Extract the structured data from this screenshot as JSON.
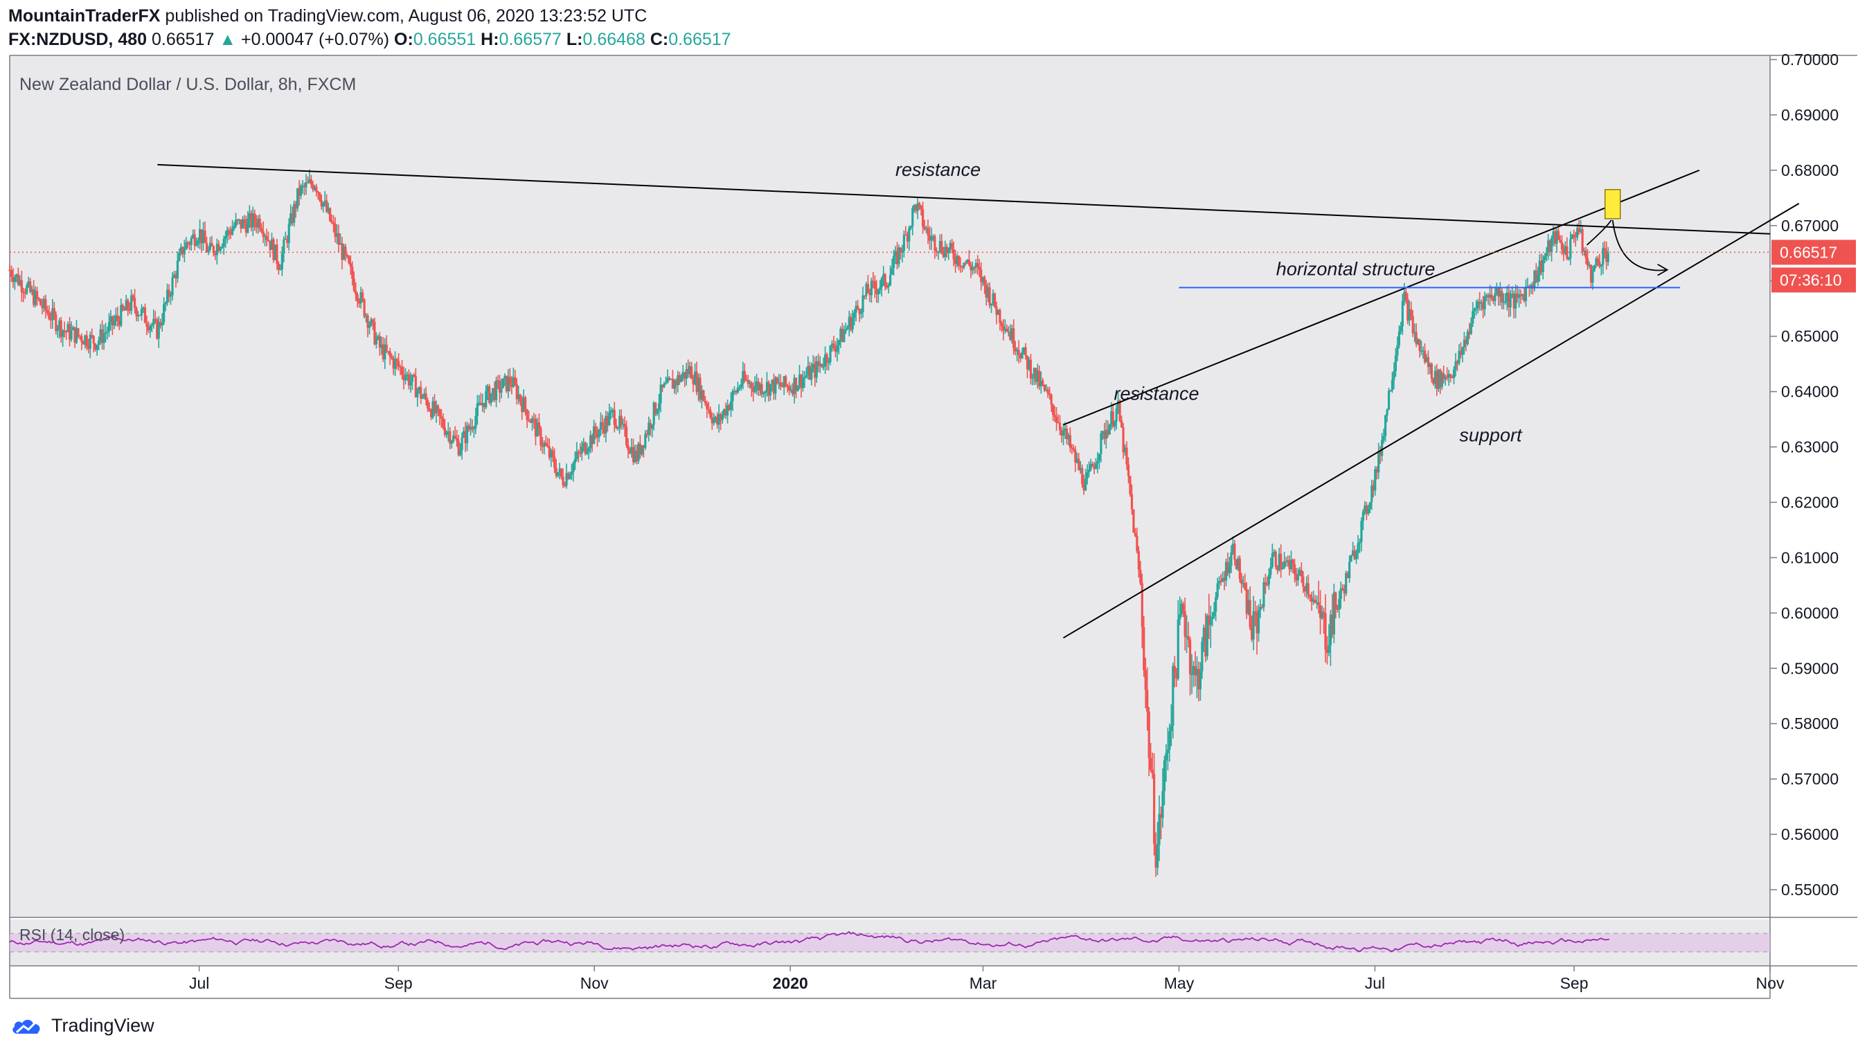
{
  "header": {
    "publisher": "MountainTraderFX",
    "published_text": " published on TradingView.com, August 06, 2020 13:23:52 UTC",
    "symbol": "FX:NZDUSD, 480",
    "last": "0.66517",
    "change_arrow": "▲",
    "change": "+0.00047 (+0.07%)",
    "o_label": "O:",
    "o_val": "0.66551",
    "h_label": "H:",
    "h_val": "0.66577",
    "l_label": "L:",
    "l_val": "0.66468",
    "c_label": "C:",
    "c_val": "0.66517"
  },
  "chart_data": {
    "type": "candlestick",
    "title": "New Zealand Dollar / U.S. Dollar, 8h, FXCM",
    "ylim": [
      0.545,
      0.7005
    ],
    "y_ticks": [
      "0.70000",
      "0.69000",
      "0.68000",
      "0.67000",
      "0.66000",
      "0.65000",
      "0.64000",
      "0.63000",
      "0.62000",
      "0.61000",
      "0.60000",
      "0.59000",
      "0.58000",
      "0.57000",
      "0.56000",
      "0.55000"
    ],
    "x_ticks": [
      {
        "label": "Jul",
        "date": "2019-07-01",
        "bold": false
      },
      {
        "label": "Sep",
        "date": "2019-09-01",
        "bold": false
      },
      {
        "label": "Nov",
        "date": "2019-11-01",
        "bold": false
      },
      {
        "label": "2020",
        "date": "2020-01-01",
        "bold": true
      },
      {
        "label": "Mar",
        "date": "2020-03-01",
        "bold": false
      },
      {
        "label": "May",
        "date": "2020-05-01",
        "bold": false
      },
      {
        "label": "Jul",
        "date": "2020-07-01",
        "bold": false
      },
      {
        "label": "Sep",
        "date": "2020-09-01",
        "bold": false
      },
      {
        "label": "Nov",
        "date": "2020-11-01",
        "bold": false
      }
    ],
    "x_range": [
      "2019-05-03",
      "2020-11-01"
    ],
    "price_path": [
      [
        "2019-05-03",
        0.662
      ],
      [
        "2019-05-20",
        0.651
      ],
      [
        "2019-05-30",
        0.649
      ],
      [
        "2019-06-10",
        0.656
      ],
      [
        "2019-06-18",
        0.651
      ],
      [
        "2019-06-26",
        0.666
      ],
      [
        "2019-07-01",
        0.669
      ],
      [
        "2019-07-04",
        0.665
      ],
      [
        "2019-07-12",
        0.67
      ],
      [
        "2019-07-20",
        0.671
      ],
      [
        "2019-07-26",
        0.663
      ],
      [
        "2019-08-01",
        0.676
      ],
      [
        "2019-08-06",
        0.678
      ],
      [
        "2019-08-10",
        0.672
      ],
      [
        "2019-08-18",
        0.66
      ],
      [
        "2019-08-26",
        0.648
      ],
      [
        "2019-09-02",
        0.644
      ],
      [
        "2019-09-10",
        0.638
      ],
      [
        "2019-09-20",
        0.63
      ],
      [
        "2019-09-28",
        0.639
      ],
      [
        "2019-10-06",
        0.642
      ],
      [
        "2019-10-14",
        0.633
      ],
      [
        "2019-10-22",
        0.624
      ],
      [
        "2019-10-30",
        0.631
      ],
      [
        "2019-11-07",
        0.636
      ],
      [
        "2019-11-14",
        0.628
      ],
      [
        "2019-11-22",
        0.64
      ],
      [
        "2019-12-01",
        0.644
      ],
      [
        "2019-12-09",
        0.634
      ],
      [
        "2019-12-17",
        0.642
      ],
      [
        "2019-12-22",
        0.641
      ],
      [
        "2020-01-01",
        0.641
      ],
      [
        "2020-01-09",
        0.644
      ],
      [
        "2020-01-17",
        0.65
      ],
      [
        "2020-01-25",
        0.658
      ],
      [
        "2020-01-31",
        0.66
      ],
      [
        "2020-02-06",
        0.668
      ],
      [
        "2020-02-09",
        0.674
      ],
      [
        "2020-02-13",
        0.668
      ],
      [
        "2020-02-20",
        0.665
      ],
      [
        "2020-02-28",
        0.662
      ],
      [
        "2020-03-06",
        0.654
      ],
      [
        "2020-03-14",
        0.646
      ],
      [
        "2020-03-22",
        0.638
      ],
      [
        "2020-03-28",
        0.63
      ],
      [
        "2020-04-02",
        0.623
      ],
      [
        "2020-04-08",
        0.633
      ],
      [
        "2020-04-12",
        0.637
      ],
      [
        "2020-04-15",
        0.625
      ],
      [
        "2020-04-19",
        0.605
      ],
      [
        "2020-04-21",
        0.582
      ],
      [
        "2020-04-24",
        0.556
      ],
      [
        "2020-04-28",
        0.58
      ],
      [
        "2020-05-02",
        0.602
      ],
      [
        "2020-05-06",
        0.587
      ],
      [
        "2020-05-12",
        0.602
      ],
      [
        "2020-05-18",
        0.612
      ],
      [
        "2020-05-24",
        0.596
      ],
      [
        "2020-05-30",
        0.61
      ],
      [
        "2020-06-05",
        0.608
      ],
      [
        "2020-06-10",
        0.605
      ],
      [
        "2020-06-16",
        0.596
      ],
      [
        "2020-06-22",
        0.606
      ],
      [
        "2020-06-28",
        0.618
      ],
      [
        "2020-07-02",
        0.627
      ],
      [
        "2020-07-06",
        0.642
      ],
      [
        "2020-07-10",
        0.657
      ],
      [
        "2020-07-14",
        0.649
      ],
      [
        "2020-07-20",
        0.642
      ],
      [
        "2020-07-26",
        0.644
      ],
      [
        "2020-08-02",
        0.656
      ],
      [
        "2020-08-08",
        0.658
      ],
      [
        "2020-08-14",
        0.656
      ],
      [
        "2020-08-20",
        0.661
      ],
      [
        "2020-08-26",
        0.668
      ],
      [
        "2020-08-30",
        0.665
      ],
      [
        "2020-09-02",
        0.67
      ],
      [
        "2020-09-06",
        0.661
      ],
      [
        "2020-09-10",
        0.665
      ],
      [
        "2020-09-12",
        0.6652
      ]
    ],
    "last_price": {
      "label": "0.66517",
      "value": 0.66517,
      "countdown": "07:36:10"
    },
    "drawings": [
      {
        "kind": "trendline",
        "color": "#000000",
        "from": [
          "2019-06-18",
          0.681
        ],
        "to": [
          "2020-11-01",
          0.6685
        ]
      },
      {
        "kind": "trendline",
        "color": "#000000",
        "from": [
          "2020-03-26",
          0.634
        ],
        "to": [
          "2020-10-10",
          0.68
        ]
      },
      {
        "kind": "trendline",
        "color": "#000000",
        "from": [
          "2020-03-26",
          0.5955
        ],
        "to": [
          "2020-11-10",
          0.674
        ]
      },
      {
        "kind": "hline",
        "color": "#2962ff",
        "from": [
          "2020-05-01",
          0.6588
        ],
        "to": [
          "2020-10-04",
          0.6588
        ]
      }
    ],
    "annotations": [
      {
        "text": "resistance",
        "at": [
          "2020-02-16",
          0.679
        ]
      },
      {
        "text": "horizontal structure",
        "at": [
          "2020-06-25",
          0.661
        ]
      },
      {
        "text": "resistance",
        "at": [
          "2020-04-24",
          0.6385
        ]
      },
      {
        "text": "support",
        "at": [
          "2020-08-06",
          0.631
        ]
      }
    ],
    "rsi": {
      "label": "RSI (14, close)",
      "upper": 70,
      "lower": 30,
      "color": "#9c27b0"
    },
    "colors": {
      "up": "#26a69a",
      "down": "#ef5350",
      "bg": "#e9e9ec",
      "last_price": "#ef5350",
      "hline": "#2962ff",
      "rsi": "#9c27b0"
    }
  },
  "branding": {
    "logo_text": "TradingView"
  }
}
